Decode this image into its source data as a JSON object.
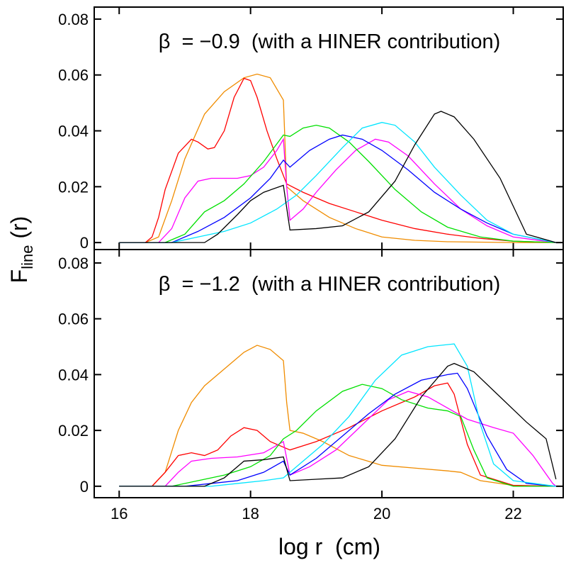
{
  "chart_data": [
    {
      "type": "line",
      "annotation": "β  = −0.9  (with a HINER contribution)",
      "y_label": "F",
      "y_label_sub": "line",
      "y_label_rest": " (r)",
      "xlim": [
        15.62,
        22.76
      ],
      "ylim": [
        -0.0025,
        0.0843
      ],
      "xticks": [
        16,
        18,
        20,
        22
      ],
      "yticks": [
        0,
        0.02,
        0.04,
        0.06,
        0.08
      ],
      "series": [
        {
          "color": "#f08c00",
          "x": [
            16.0,
            16.4,
            16.6,
            16.8,
            17.0,
            17.3,
            17.6,
            17.9,
            18.1,
            18.3,
            18.5,
            18.55,
            18.8,
            19.2,
            19.6,
            20,
            20.5,
            21,
            22,
            22.65
          ],
          "values": [
            0,
            0,
            0.002,
            0.015,
            0.03,
            0.046,
            0.054,
            0.059,
            0.0603,
            0.059,
            0.051,
            0.02,
            0.015,
            0.009,
            0.005,
            0.002,
            0.0008,
            0.0003,
            0,
            0
          ]
        },
        {
          "color": "#ff0000",
          "x": [
            16,
            16.4,
            16.5,
            16.6,
            16.7,
            16.9,
            17.1,
            17.2,
            17.35,
            17.45,
            17.6,
            17.75,
            17.9,
            18.0,
            18.1,
            18.25,
            18.4,
            18.55,
            18.8,
            19.2,
            19.6,
            20,
            20.5,
            21,
            21.5,
            22,
            22.65
          ],
          "values": [
            0,
            0,
            0.002,
            0.009,
            0.019,
            0.032,
            0.037,
            0.036,
            0.0335,
            0.034,
            0.04,
            0.052,
            0.0588,
            0.058,
            0.052,
            0.04,
            0.03,
            0.021,
            0.018,
            0.014,
            0.011,
            0.008,
            0.005,
            0.003,
            0.0015,
            0.0005,
            0
          ]
        },
        {
          "color": "#ff00ff",
          "x": [
            16,
            16.6,
            16.8,
            17.0,
            17.2,
            17.4,
            17.8,
            18.0,
            18.2,
            18.4,
            18.5,
            18.55,
            18.6,
            18.8,
            19.0,
            19.3,
            19.6,
            19.9,
            20.1,
            20.4,
            20.8,
            21.2,
            21.6,
            22,
            22.65
          ],
          "values": [
            0,
            0,
            0.005,
            0.016,
            0.022,
            0.023,
            0.023,
            0.024,
            0.027,
            0.033,
            0.037,
            0.02,
            0.008,
            0.012,
            0.018,
            0.026,
            0.033,
            0.037,
            0.036,
            0.031,
            0.021,
            0.012,
            0.006,
            0.002,
            0
          ]
        },
        {
          "color": "#00e000",
          "x": [
            16,
            16.7,
            17.0,
            17.3,
            17.6,
            17.9,
            18.2,
            18.5,
            18.6,
            18.8,
            19,
            19.2,
            19.5,
            19.8,
            20.2,
            20.6,
            21,
            21.5,
            22,
            22.65
          ],
          "values": [
            0,
            0,
            0.003,
            0.011,
            0.015,
            0.021,
            0.029,
            0.0385,
            0.038,
            0.041,
            0.042,
            0.041,
            0.036,
            0.029,
            0.019,
            0.011,
            0.0055,
            0.002,
            0.0005,
            0
          ]
        },
        {
          "color": "#0000ff",
          "x": [
            16,
            16.8,
            17.2,
            17.6,
            18.0,
            18.3,
            18.5,
            18.6,
            18.9,
            19.2,
            19.4,
            19.7,
            20.0,
            20.4,
            20.8,
            21.2,
            21.6,
            22,
            22.65
          ],
          "values": [
            0,
            0,
            0.004,
            0.009,
            0.016,
            0.023,
            0.0295,
            0.027,
            0.033,
            0.037,
            0.0385,
            0.037,
            0.033,
            0.026,
            0.018,
            0.012,
            0.007,
            0.003,
            0
          ]
        },
        {
          "color": "#00e5ff",
          "x": [
            16,
            16.8,
            17.2,
            17.6,
            18.0,
            18.4,
            18.7,
            19.0,
            19.4,
            19.7,
            20.0,
            20.2,
            20.5,
            20.8,
            21.2,
            21.6,
            22,
            22.65
          ],
          "values": [
            0,
            0,
            0.002,
            0.004,
            0.007,
            0.012,
            0.017,
            0.024,
            0.034,
            0.041,
            0.043,
            0.042,
            0.036,
            0.027,
            0.017,
            0.008,
            0.003,
            0
          ]
        },
        {
          "color": "#000000",
          "x": [
            16,
            17.3,
            17.5,
            17.8,
            18.0,
            18.2,
            18.5,
            18.6,
            19.0,
            19.4,
            19.8,
            20.2,
            20.5,
            20.8,
            20.9,
            21.1,
            21.4,
            21.8,
            22.1,
            22.2,
            22.65
          ],
          "values": [
            0,
            0,
            0.003,
            0.01,
            0.015,
            0.018,
            0.0205,
            0.0045,
            0.005,
            0.006,
            0.011,
            0.022,
            0.035,
            0.046,
            0.047,
            0.045,
            0.037,
            0.023,
            0.008,
            0.003,
            0
          ]
        }
      ]
    },
    {
      "type": "line",
      "annotation": "β  = −1.2  (with a HINER contribution)",
      "x_label": "log r  (cm)",
      "xlim": [
        15.62,
        22.76
      ],
      "ylim": [
        -0.0041,
        0.0848
      ],
      "xticks": [
        16,
        18,
        20,
        22
      ],
      "yticks": [
        0,
        0.02,
        0.04,
        0.06,
        0.08
      ],
      "series": [
        {
          "color": "#f08c00",
          "x": [
            16,
            16.5,
            16.7,
            16.9,
            17.1,
            17.3,
            17.6,
            17.9,
            18.1,
            18.3,
            18.5,
            18.55,
            18.6,
            18.8,
            19.1,
            19.5,
            20,
            20.5,
            21,
            21.2,
            21.5,
            22,
            22.65
          ],
          "values": [
            0,
            0,
            0.005,
            0.02,
            0.03,
            0.036,
            0.042,
            0.048,
            0.0505,
            0.049,
            0.045,
            0.03,
            0.02,
            0.019,
            0.016,
            0.011,
            0.0075,
            0.0065,
            0.0055,
            0.005,
            0.002,
            0.0003,
            0
          ]
        },
        {
          "color": "#ff0000",
          "x": [
            16,
            16.5,
            16.7,
            16.9,
            17.1,
            17.3,
            17.5,
            17.7,
            17.9,
            18.1,
            18.3,
            18.6,
            19,
            19.5,
            20,
            20.5,
            20.8,
            21.0,
            21.1,
            21.3,
            21.5,
            22,
            22.65
          ],
          "values": [
            0,
            0,
            0.005,
            0.011,
            0.012,
            0.011,
            0.013,
            0.018,
            0.021,
            0.02,
            0.016,
            0.013,
            0.016,
            0.021,
            0.027,
            0.032,
            0.036,
            0.037,
            0.033,
            0.015,
            0.004,
            0.0003,
            0
          ]
        },
        {
          "color": "#ff00ff",
          "x": [
            16,
            16.7,
            16.9,
            17.1,
            17.4,
            17.8,
            18.2,
            18.5,
            18.6,
            18.9,
            19.3,
            19.7,
            20.1,
            20.4,
            20.7,
            21.0,
            21.3,
            21.7,
            22.0,
            22.3,
            22.6,
            22.65
          ],
          "values": [
            0,
            0,
            0.005,
            0.009,
            0.01,
            0.0105,
            0.012,
            0.016,
            0.004,
            0.007,
            0.013,
            0.022,
            0.031,
            0.034,
            0.032,
            0.028,
            0.024,
            0.021,
            0.019,
            0.011,
            0.001,
            0
          ]
        },
        {
          "color": "#00e000",
          "x": [
            16,
            16.8,
            17.2,
            17.6,
            18.0,
            18.3,
            18.5,
            18.7,
            19.0,
            19.4,
            19.7,
            20.0,
            20.3,
            20.7,
            21.0,
            21.2,
            21.4,
            21.6,
            22,
            22.65
          ],
          "values": [
            0,
            0,
            0.002,
            0.004,
            0.007,
            0.011,
            0.017,
            0.02,
            0.027,
            0.034,
            0.0365,
            0.035,
            0.031,
            0.028,
            0.027,
            0.025,
            0.013,
            0.003,
            0,
            0
          ]
        },
        {
          "color": "#0000ff",
          "x": [
            16,
            17.0,
            17.4,
            17.8,
            18.2,
            18.5,
            18.6,
            19.0,
            19.4,
            19.8,
            20.2,
            20.6,
            21.0,
            21.15,
            21.3,
            21.6,
            21.9,
            22.2,
            22.65
          ],
          "values": [
            0,
            0,
            0.001,
            0.002,
            0.005,
            0.009,
            0.004,
            0.01,
            0.018,
            0.026,
            0.033,
            0.038,
            0.04,
            0.0405,
            0.035,
            0.018,
            0.006,
            0.001,
            0
          ]
        },
        {
          "color": "#00e5ff",
          "x": [
            16,
            17.4,
            17.8,
            18.2,
            18.5,
            18.7,
            19.1,
            19.5,
            19.9,
            20.3,
            20.7,
            21.1,
            21.3,
            21.5,
            21.7,
            22,
            22.65
          ],
          "values": [
            0,
            0,
            0.001,
            0.002,
            0.003,
            0.007,
            0.015,
            0.025,
            0.038,
            0.047,
            0.05,
            0.051,
            0.043,
            0.022,
            0.008,
            0.002,
            0
          ]
        },
        {
          "color": "#000000",
          "x": [
            16,
            17.3,
            17.6,
            17.9,
            18.2,
            18.5,
            18.6,
            19.0,
            19.4,
            19.8,
            20.2,
            20.6,
            21.0,
            21.1,
            21.4,
            21.8,
            22.2,
            22.5,
            22.65
          ],
          "values": [
            0,
            0,
            0.003,
            0.009,
            0.0095,
            0.0105,
            0.002,
            0.0025,
            0.003,
            0.007,
            0.017,
            0.032,
            0.043,
            0.044,
            0.041,
            0.032,
            0.023,
            0.017,
            0.0025
          ]
        }
      ]
    }
  ]
}
